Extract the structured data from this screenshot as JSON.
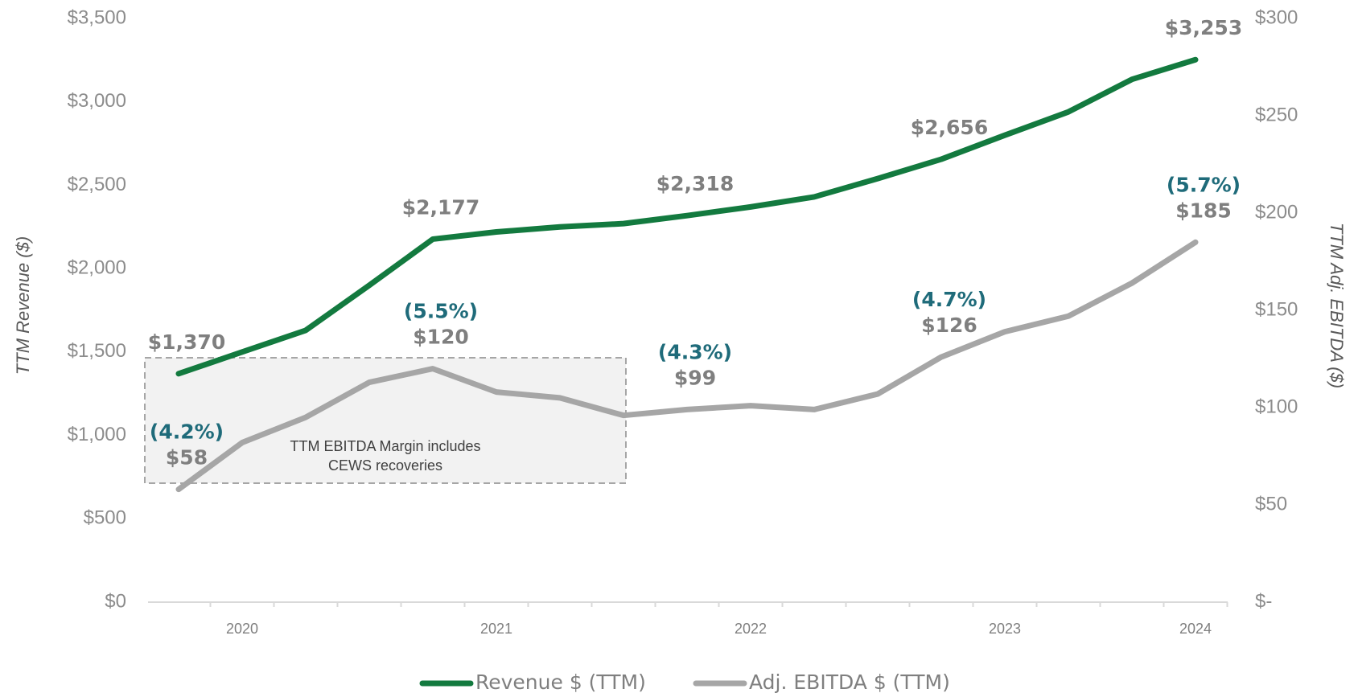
{
  "chart_data": {
    "type": "line",
    "categories": [
      null,
      "2020",
      null,
      null,
      null,
      "2021",
      null,
      null,
      null,
      "2022",
      null,
      null,
      null,
      "2023",
      null,
      null,
      "2024"
    ],
    "series": [
      {
        "name": "Revenue $ (TTM)",
        "color": "#137a3f",
        "axis": "y",
        "values": [
          1370,
          1500,
          1630,
          1900,
          2177,
          2220,
          2250,
          2270,
          2318,
          2370,
          2430,
          2540,
          2656,
          2800,
          2940,
          3135,
          3253
        ],
        "value_labels": [
          "$1,370",
          null,
          null,
          null,
          "$2,177",
          null,
          null,
          null,
          "$2,318",
          null,
          null,
          null,
          "$2,656",
          null,
          null,
          null,
          "$3,253"
        ]
      },
      {
        "name": "Adj. EBITDA $ (TTM)",
        "color": "#a6a6a6",
        "axis": "y2",
        "values": [
          58,
          82,
          95,
          113,
          120,
          108,
          105,
          96,
          99,
          101,
          99,
          107,
          126,
          139,
          147,
          164,
          185
        ],
        "value_labels": [
          "$58",
          null,
          null,
          null,
          "$120",
          null,
          null,
          null,
          "$99",
          null,
          null,
          null,
          "$126",
          null,
          null,
          null,
          "$185"
        ],
        "margin_labels": [
          "(4.2%)",
          null,
          null,
          null,
          "(5.5%)",
          null,
          null,
          null,
          "(4.3%)",
          null,
          null,
          null,
          "(4.7%)",
          null,
          null,
          null,
          "(5.7%)"
        ]
      }
    ],
    "ylabel": "TTM Revenue ($)",
    "y2label": "TTM Adj. EBITDA ($)",
    "ylim": [
      0,
      3500
    ],
    "yticks": [
      {
        "value": 0,
        "label": "$0"
      },
      {
        "value": 500,
        "label": "$500"
      },
      {
        "value": 1000,
        "label": "$1,000"
      },
      {
        "value": 1500,
        "label": "$1,500"
      },
      {
        "value": 2000,
        "label": "$2,000"
      },
      {
        "value": 2500,
        "label": "$2,500"
      },
      {
        "value": 3000,
        "label": "$3,000"
      },
      {
        "value": 3500,
        "label": "$3,500"
      }
    ],
    "y2lim": [
      0,
      300
    ],
    "y2ticks": [
      {
        "value": 0,
        "label": "$-"
      },
      {
        "value": 50,
        "label": "$50"
      },
      {
        "value": 100,
        "label": "$100"
      },
      {
        "value": 150,
        "label": "$150"
      },
      {
        "value": 200,
        "label": "$200"
      },
      {
        "value": 250,
        "label": "$250"
      },
      {
        "value": 300,
        "label": "$300"
      }
    ],
    "annotation": [
      "TTM EBITDA Margin includes",
      "CEWS recoveries"
    ],
    "grid": false,
    "legend": "bottom"
  }
}
